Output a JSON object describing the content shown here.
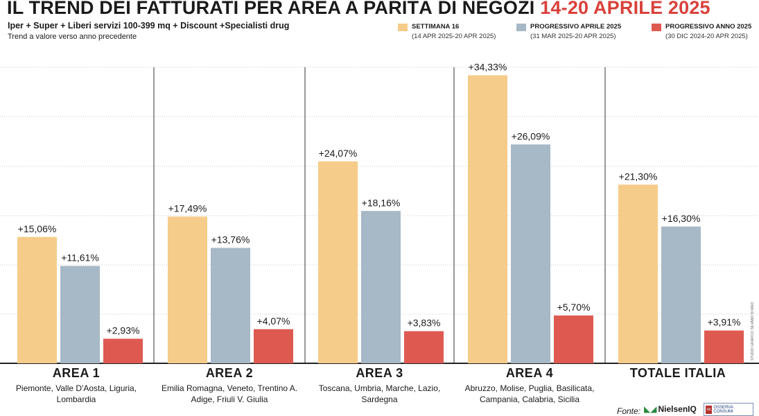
{
  "header": {
    "title_main": "IL TREND DEI FATTURATI PER AREA A PARITÀ DI NEGOZI",
    "title_accent": "14-20 APRILE 2025",
    "subtitle": "Iper + Super + Liberi servizi 100-399 mq + Discount +Specialisti drug",
    "note": "Trend a valore verso anno precedente"
  },
  "colors": {
    "settimana": "#f5cc8a",
    "aprile": "#a7b8c6",
    "anno": "#de5a51",
    "grid": "#c8c8c8",
    "accent": "#d9413b"
  },
  "legend": [
    {
      "label": "SETTIMANA 16",
      "range": "(14 APR 2025-20 APR 2025)"
    },
    {
      "label": "PROGRESSIVO APRILE 2025",
      "range": "(31 MAR 2025-20 APR 2025)"
    },
    {
      "label": "PROGRESSIVO ANNO 2025",
      "range": "(30 DIC 2024-20 APR 2025)"
    }
  ],
  "regions": [
    {
      "name": "AREA 1",
      "sub": "Piemonte, Valle D'Aosta, Liguria, Lombardia"
    },
    {
      "name": "AREA 2",
      "sub": "Emilia Romagna, Veneto, Trentino A. Adige, Friuli V. Giulia"
    },
    {
      "name": "AREA 3",
      "sub": "Toscana, Umbria, Marche, Lazio, Sardegna"
    },
    {
      "name": "AREA 4",
      "sub": "Abruzzo, Molise, Puglia, Basilicata, Campania, Calabria, Sicilia"
    },
    {
      "name": "TOTALE ITALIA",
      "sub": ""
    }
  ],
  "footer": {
    "source_label": "Fonte:",
    "nielsen": "NielsenIQ",
    "osserva": "OSSERVA CONSUMI",
    "credit": "STUDIO GRAFICO SILVANO DI MEO"
  },
  "chart_data": {
    "type": "bar",
    "title": "IL TREND DEI FATTURATI PER AREA A PARITÀ DI NEGOZI 14-20 APRILE 2025",
    "categories": [
      "AREA 1",
      "AREA 2",
      "AREA 3",
      "AREA 4",
      "TOTALE ITALIA"
    ],
    "series": [
      {
        "name": "SETTIMANA 16",
        "values": [
          15.06,
          17.49,
          24.07,
          34.33,
          21.3
        ],
        "labels": [
          "+15,06%",
          "+17,49%",
          "+24,07%",
          "+34,33%",
          "+21,30%"
        ]
      },
      {
        "name": "PROGRESSIVO APRILE 2025",
        "values": [
          11.61,
          13.76,
          18.16,
          26.09,
          16.3
        ],
        "labels": [
          "+11,61%",
          "+13,76%",
          "+18,16%",
          "+26,09%",
          "+16,30%"
        ]
      },
      {
        "name": "PROGRESSIVO ANNO 2025",
        "values": [
          2.93,
          4.07,
          3.83,
          5.7,
          3.91
        ],
        "labels": [
          "+2,93%",
          "+4,07%",
          "+3,83%",
          "+5,70%",
          "+3,91%"
        ]
      }
    ],
    "ylabel": "Trend a valore verso anno precedente (%)",
    "ylim": [
      0,
      35
    ],
    "grid": true,
    "legend_position": "top-right"
  }
}
